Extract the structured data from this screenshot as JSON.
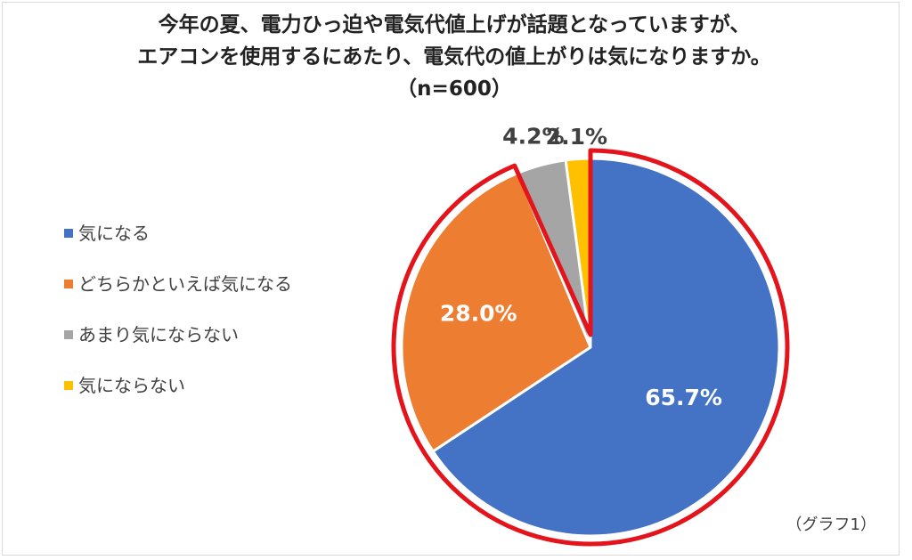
{
  "chart_data": {
    "type": "pie",
    "title_lines": [
      "今年の夏、電力ひっ迫や電気代値上げが話題となっていますが、",
      "エアコンを使用するにあたり、電気代の値上がりは気になりますか。",
      "（n=600）"
    ],
    "slices": [
      {
        "label": "気になる",
        "value": 65.7,
        "display": "65.7%",
        "color": "#4472C4"
      },
      {
        "label": "どちらかといえば気になる",
        "value": 28.0,
        "display": "28.0%",
        "color": "#ED7D31"
      },
      {
        "label": "あまり気にならない",
        "value": 4.2,
        "display": "4.2%",
        "color": "#A5A5A5"
      },
      {
        "label": "気にならない",
        "value": 2.1,
        "display": "2.1%",
        "color": "#FFC000"
      }
    ],
    "highlight_color": "#E3141B",
    "legend_position": "left",
    "caption": "（グラフ1）"
  }
}
